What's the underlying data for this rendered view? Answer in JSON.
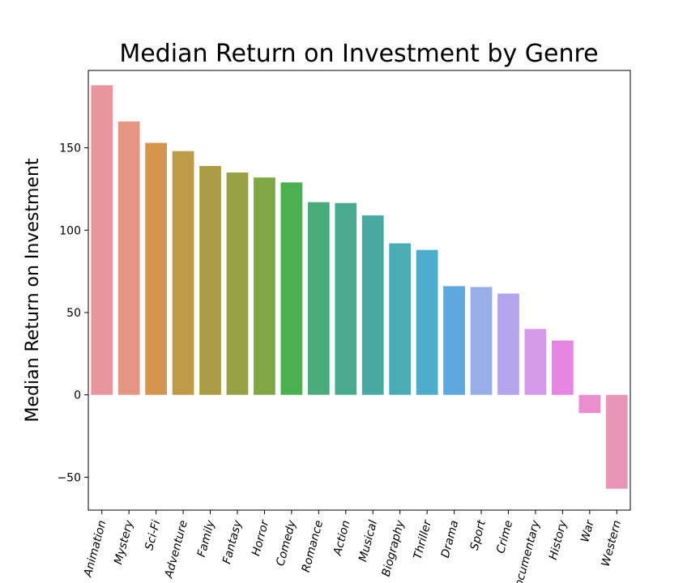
{
  "chart_data": {
    "type": "bar",
    "title": "Median Return on Investment by Genre",
    "xlabel": "",
    "ylabel": "Median Return on Investment",
    "ylim": [
      -70,
      197
    ],
    "yticks": [
      -50,
      0,
      50,
      100,
      150
    ],
    "grid": false,
    "categories": [
      "Animation",
      "Mystery",
      "Sci-Fi",
      "Adventure",
      "Family",
      "Fantasy",
      "Horror",
      "Comedy",
      "Romance",
      "Action",
      "Musical",
      "Biography",
      "Thriller",
      "Drama",
      "Sport",
      "Crime",
      "Documentary",
      "History",
      "War",
      "Western"
    ],
    "values": [
      188,
      166,
      153,
      148,
      139,
      135,
      132,
      129,
      117,
      116.5,
      109,
      92,
      88,
      66,
      65.5,
      61.5,
      40,
      33,
      -11,
      -57
    ],
    "colors": [
      "#e8969d",
      "#e59582",
      "#d6944f",
      "#bf9a48",
      "#aa9d46",
      "#98a144",
      "#80a845",
      "#4bb04f",
      "#4aac7a",
      "#49aa90",
      "#49a9a2",
      "#4aacb5",
      "#4baecd",
      "#5ea8e0",
      "#97aee8",
      "#b4a4ec",
      "#d39ae9",
      "#e486e2",
      "#e98fd0",
      "#e895b8"
    ]
  }
}
